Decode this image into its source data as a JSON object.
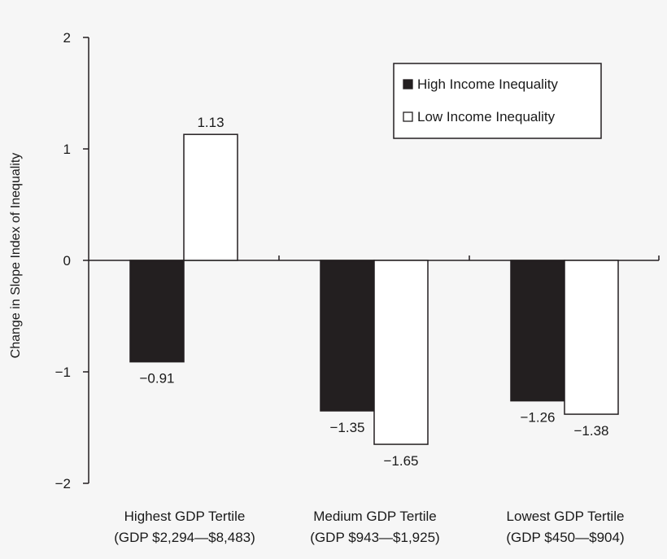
{
  "chart_data": {
    "type": "bar",
    "ylabel": "Change in Slope Index of Inequality",
    "ylim": [
      -2,
      2
    ],
    "yticks": [
      2,
      1,
      0,
      -1,
      -2
    ],
    "ytick_labels": [
      "2",
      "1",
      "0",
      "−1",
      "−2"
    ],
    "grid": false,
    "legend_position": "top-right",
    "categories": [
      [
        "Highest GDP Tertile",
        "(GDP $2,294—$8,483)"
      ],
      [
        "Medium GDP Tertile",
        "(GDP $943—$1,925)"
      ],
      [
        "Lowest GDP Tertile",
        "(GDP $450—$904)"
      ]
    ],
    "series": [
      {
        "name": "High Income Inequality",
        "color": "#231f20",
        "values": [
          -0.91,
          -1.35,
          -1.26
        ],
        "labels": [
          "−0.91",
          "−1.35",
          "−1.26"
        ]
      },
      {
        "name": "Low Income Inequality",
        "color": "#ffffff",
        "values": [
          1.13,
          -1.65,
          -1.38
        ],
        "labels": [
          "1.13",
          "−1.65",
          "−1.38"
        ]
      }
    ]
  }
}
